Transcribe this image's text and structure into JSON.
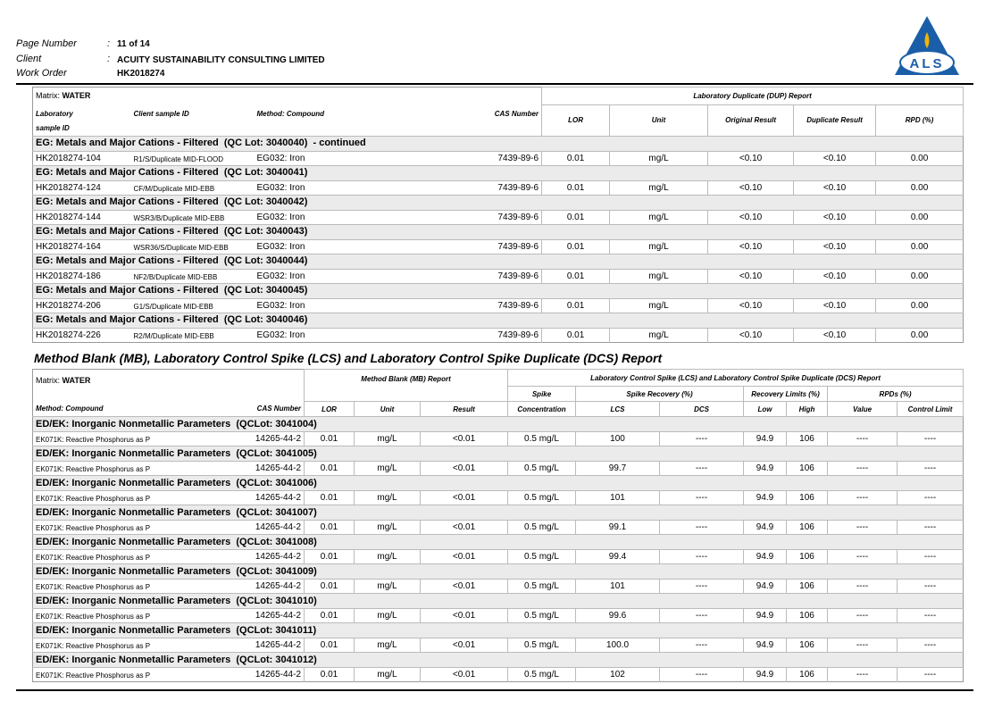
{
  "header": {
    "labels": [
      "Page Number",
      "Client",
      "Work Order"
    ],
    "separator": ":",
    "values": [
      "11 of 14",
      "ACUITY SUSTAINABILITY CONSULTING LIMITED",
      "HK2018274"
    ],
    "logo_text": "ALS"
  },
  "table1": {
    "matrix_label": "Matrix:",
    "matrix": "WATER",
    "report_title": "Laboratory Duplicate (DUP) Report",
    "columns": [
      "Laboratory sample ID",
      "Client sample ID",
      "Method: Compound",
      "CAS Number",
      "LOR",
      "Unit",
      "Original Result",
      "Duplicate Result",
      "RPD (%)"
    ],
    "groups": [
      {
        "title": "EG: Metals and Major Cations - Filtered  (QC Lot: 3040040)  - continued",
        "rows": [
          [
            "HK2018274-104",
            "R1/S/Duplicate MID-FLOOD",
            "EG032: Iron",
            "7439-89-6",
            "0.01",
            "mg/L",
            "<0.10",
            "<0.10",
            "0.00"
          ]
        ]
      },
      {
        "title": "EG: Metals and Major Cations - Filtered  (QC Lot: 3040041)",
        "rows": [
          [
            "HK2018274-124",
            "CF/M/Duplicate MID-EBB",
            "EG032: Iron",
            "7439-89-6",
            "0.01",
            "mg/L",
            "<0.10",
            "<0.10",
            "0.00"
          ]
        ]
      },
      {
        "title": "EG: Metals and Major Cations - Filtered  (QC Lot: 3040042)",
        "rows": [
          [
            "HK2018274-144",
            "WSR3/B/Duplicate MID-EBB",
            "EG032: Iron",
            "7439-89-6",
            "0.01",
            "mg/L",
            "<0.10",
            "<0.10",
            "0.00"
          ]
        ]
      },
      {
        "title": "EG: Metals and Major Cations - Filtered  (QC Lot: 3040043)",
        "rows": [
          [
            "HK2018274-164",
            "WSR36/S/Duplicate MID-EBB",
            "EG032: Iron",
            "7439-89-6",
            "0.01",
            "mg/L",
            "<0.10",
            "<0.10",
            "0.00"
          ]
        ]
      },
      {
        "title": "EG: Metals and Major Cations - Filtered  (QC Lot: 3040044)",
        "rows": [
          [
            "HK2018274-186",
            "NF2/B/Duplicate MID-EBB",
            "EG032: Iron",
            "7439-89-6",
            "0.01",
            "mg/L",
            "<0.10",
            "<0.10",
            "0.00"
          ]
        ]
      },
      {
        "title": "EG: Metals and Major Cations - Filtered  (QC Lot: 3040045)",
        "rows": [
          [
            "HK2018274-206",
            "G1/S/Duplicate MID-EBB",
            "EG032: Iron",
            "7439-89-6",
            "0.01",
            "mg/L",
            "<0.10",
            "<0.10",
            "0.00"
          ]
        ]
      },
      {
        "title": "EG: Metals and Major Cations - Filtered  (QC Lot: 3040046)",
        "rows": [
          [
            "HK2018274-226",
            "R2/M/Duplicate MID-EBB",
            "EG032: Iron",
            "7439-89-6",
            "0.01",
            "mg/L",
            "<0.10",
            "<0.10",
            "0.00"
          ]
        ]
      }
    ]
  },
  "section_title": "Method Blank (MB), Laboratory Control Spike (LCS) and Laboratory Control Spike Duplicate (DCS) Report",
  "table2": {
    "matrix_label": "Matrix:",
    "matrix": "WATER",
    "mb_title": "Method Blank (MB) Report",
    "lcs_title": "Laboratory Control Spike (LCS) and Laboratory Control Spike Duplicate (DCS) Report",
    "subheaders": [
      "Spike",
      "Spike Recovery (%)",
      "Recovery Limits (%)",
      "RPDs (%)"
    ],
    "columns": [
      "Method: Compound",
      "CAS Number",
      "LOR",
      "Unit",
      "Result",
      "Concentration",
      "LCS",
      "DCS",
      "Low",
      "High",
      "Value",
      "Control Limit"
    ],
    "groups": [
      {
        "title": "ED/EK: Inorganic Nonmetallic Parameters  (QCLot: 3041004)",
        "rows": [
          [
            "EK071K: Reactive Phosphorus as P",
            "14265-44-2",
            "0.01",
            "mg/L",
            "<0.01",
            "0.5 mg/L",
            "100",
            "----",
            "94.9",
            "106",
            "----",
            "----"
          ]
        ]
      },
      {
        "title": "ED/EK: Inorganic Nonmetallic Parameters  (QCLot: 3041005)",
        "rows": [
          [
            "EK071K: Reactive Phosphorus as P",
            "14265-44-2",
            "0.01",
            "mg/L",
            "<0.01",
            "0.5 mg/L",
            "99.7",
            "----",
            "94.9",
            "106",
            "----",
            "----"
          ]
        ]
      },
      {
        "title": "ED/EK: Inorganic Nonmetallic Parameters  (QCLot: 3041006)",
        "rows": [
          [
            "EK071K: Reactive Phosphorus as P",
            "14265-44-2",
            "0.01",
            "mg/L",
            "<0.01",
            "0.5 mg/L",
            "101",
            "----",
            "94.9",
            "106",
            "----",
            "----"
          ]
        ]
      },
      {
        "title": "ED/EK: Inorganic Nonmetallic Parameters  (QCLot: 3041007)",
        "rows": [
          [
            "EK071K: Reactive Phosphorus as P",
            "14265-44-2",
            "0.01",
            "mg/L",
            "<0.01",
            "0.5 mg/L",
            "99.1",
            "----",
            "94.9",
            "106",
            "----",
            "----"
          ]
        ]
      },
      {
        "title": "ED/EK: Inorganic Nonmetallic Parameters  (QCLot: 3041008)",
        "rows": [
          [
            "EK071K: Reactive Phosphorus as P",
            "14265-44-2",
            "0.01",
            "mg/L",
            "<0.01",
            "0.5 mg/L",
            "99.4",
            "----",
            "94.9",
            "106",
            "----",
            "----"
          ]
        ]
      },
      {
        "title": "ED/EK: Inorganic Nonmetallic Parameters  (QCLot: 3041009)",
        "rows": [
          [
            "EK071K: Reactive Phosphorus as P",
            "14265-44-2",
            "0.01",
            "mg/L",
            "<0.01",
            "0.5 mg/L",
            "101",
            "----",
            "94.9",
            "106",
            "----",
            "----"
          ]
        ]
      },
      {
        "title": "ED/EK: Inorganic Nonmetallic Parameters  (QCLot: 3041010)",
        "rows": [
          [
            "EK071K: Reactive Phosphorus as P",
            "14265-44-2",
            "0.01",
            "mg/L",
            "<0.01",
            "0.5 mg/L",
            "99.6",
            "----",
            "94.9",
            "106",
            "----",
            "----"
          ]
        ]
      },
      {
        "title": "ED/EK: Inorganic Nonmetallic Parameters  (QCLot: 3041011)",
        "rows": [
          [
            "EK071K: Reactive Phosphorus as P",
            "14265-44-2",
            "0.01",
            "mg/L",
            "<0.01",
            "0.5 mg/L",
            "100.0",
            "----",
            "94.9",
            "106",
            "----",
            "----"
          ]
        ]
      },
      {
        "title": "ED/EK: Inorganic Nonmetallic Parameters  (QCLot: 3041012)",
        "rows": [
          [
            "EK071K: Reactive Phosphorus as P",
            "14265-44-2",
            "0.01",
            "mg/L",
            "<0.01",
            "0.5 mg/L",
            "102",
            "----",
            "94.9",
            "106",
            "----",
            "----"
          ]
        ]
      }
    ]
  }
}
